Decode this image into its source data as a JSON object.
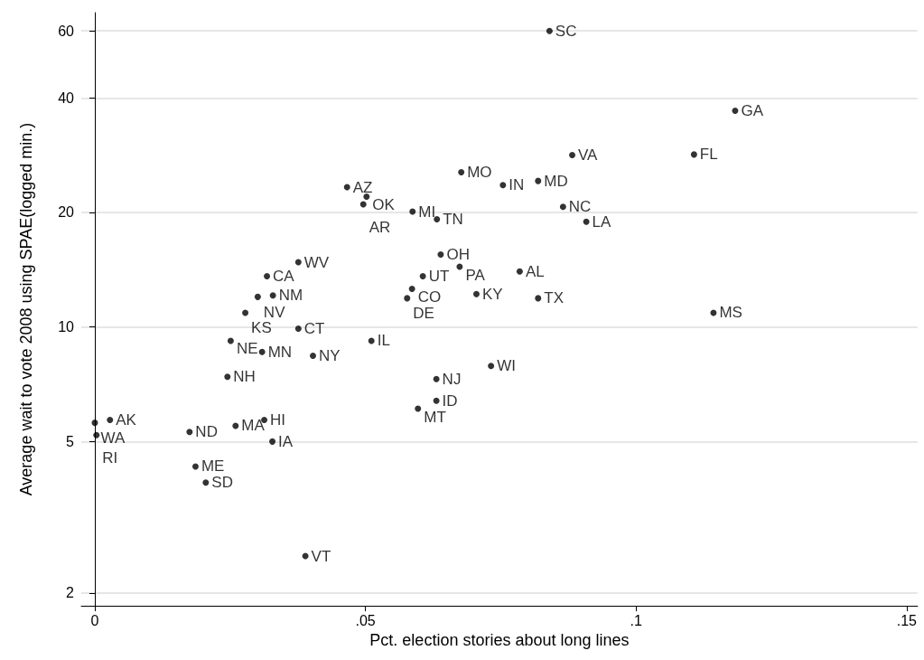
{
  "chart_data": {
    "type": "scatter",
    "xlabel": "Pct. election stories about long lines",
    "ylabel": "Average wait to vote 2008 using SPAE(logged min.)",
    "x": [
      0.084,
      0.1183,
      0.1107,
      0.0882,
      0.0677,
      0.0754,
      0.0819,
      0.0466,
      0.0502,
      0.0496,
      0.0587,
      0.0632,
      0.0865,
      0.0908,
      0.0639,
      0.0376,
      0.0674,
      0.0785,
      0.0318,
      0.0606,
      0.0329,
      0.0301,
      0.0586,
      0.0577,
      0.0705,
      0.0819,
      0.0278,
      0.1143,
      0.0376,
      0.0251,
      0.0511,
      0.0309,
      0.0403,
      0.0732,
      0.0245,
      0.0631,
      0.0631,
      0.0597,
      0.0313,
      0.026,
      0.0028,
      0.0,
      0.0003,
      0.0175,
      0.0328,
      0.0186,
      0.0205,
      0.0389
    ],
    "values": [
      60,
      37,
      28.4,
      28.3,
      25.5,
      23.6,
      24.2,
      23.3,
      22,
      21,
      20.1,
      19.2,
      20.7,
      18.9,
      15.5,
      14.8,
      14.4,
      14,
      13.6,
      13.6,
      12.1,
      12,
      12.6,
      11.9,
      12.2,
      11.9,
      10.9,
      10.9,
      9.9,
      9.2,
      9.2,
      8.6,
      8.4,
      7.9,
      7.4,
      7.3,
      6.4,
      6.1,
      5.7,
      5.5,
      5.7,
      5.6,
      5.2,
      5.3,
      5,
      4.3,
      3.9,
      2.5
    ],
    "value_labels": [
      "SC",
      "GA",
      "FL",
      "VA",
      "MO",
      "IN",
      "MD",
      "AZ",
      "OK",
      "AR",
      "MI",
      "TN",
      "NC",
      "LA",
      "OH",
      "WV",
      "PA",
      "AL",
      "CA",
      "UT",
      "NM",
      "NV",
      "CO",
      "DE",
      "KY",
      "TX",
      "KS",
      "MS",
      "CT",
      "NE",
      "IL",
      "MN",
      "NY",
      "WI",
      "NH",
      "NJ",
      "ID",
      "MT",
      "HI",
      "MA",
      "AK",
      "WA",
      "RI",
      "ND",
      "IA",
      "ME",
      "SD",
      "VT"
    ],
    "color": "#000000",
    "marker": "circle",
    "xlim": [
      -0.0025,
      0.152
    ],
    "xticks": [
      0,
      {
        "value": 0.05,
        "label": ".05"
      },
      {
        "value": 0.1,
        "label": ".1"
      },
      {
        "value": 0.15,
        "label": ".15"
      }
    ],
    "ylim": [
      1.85,
      67
    ],
    "yticks": [
      2,
      5,
      10,
      20,
      40,
      60
    ],
    "log": "y",
    "grid": "y"
  }
}
